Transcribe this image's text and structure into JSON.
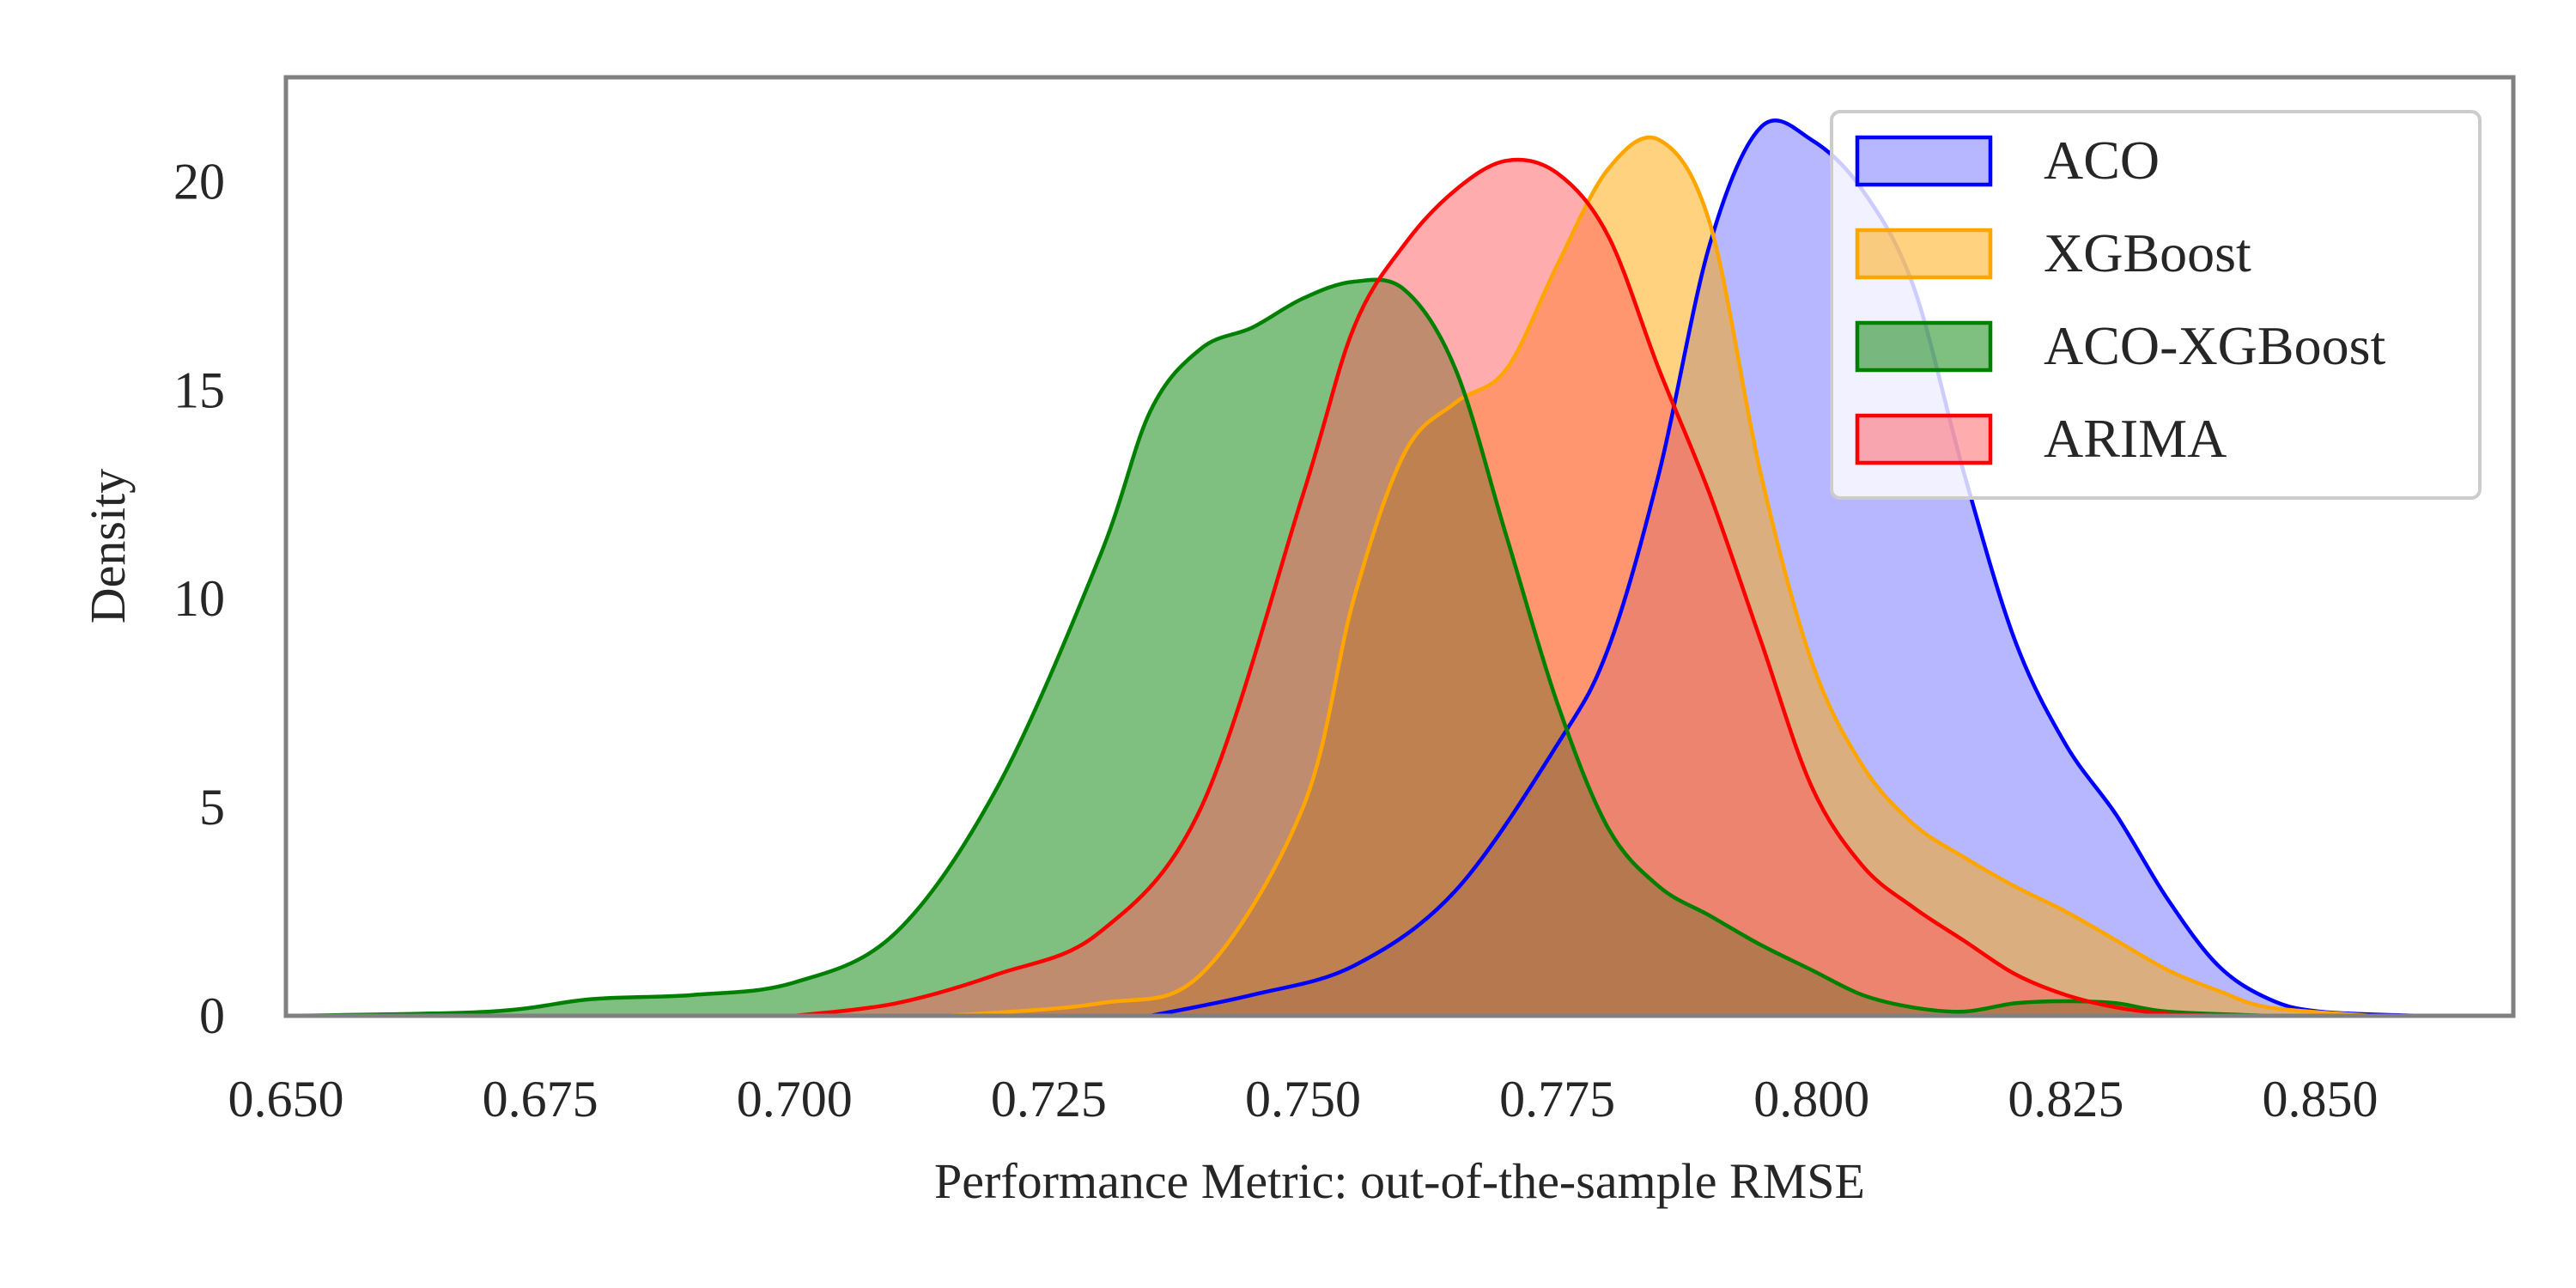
{
  "chart_data": {
    "type": "area",
    "xlabel": "Performance Metric: out-of-the-sample RMSE",
    "ylabel": "Density",
    "xlim": [
      0.65,
      0.869
    ],
    "ylim": [
      0,
      22.5
    ],
    "x_ticks": [
      "0.650",
      "0.675",
      "0.700",
      "0.725",
      "0.750",
      "0.775",
      "0.800",
      "0.825",
      "0.850"
    ],
    "y_ticks": [
      "0",
      "5",
      "10",
      "15",
      "20"
    ],
    "grid": false,
    "legend_position": "top-right",
    "series": [
      {
        "name": "ACO",
        "color": "#0000ff",
        "fill": "#6f6fff",
        "points": [
          [
            0.735,
            0
          ],
          [
            0.745,
            0.5
          ],
          [
            0.755,
            1.2
          ],
          [
            0.765,
            3.0
          ],
          [
            0.775,
            6.5
          ],
          [
            0.78,
            8.8
          ],
          [
            0.785,
            13.0
          ],
          [
            0.79,
            18.5
          ],
          [
            0.795,
            21.3
          ],
          [
            0.8,
            21.0
          ],
          [
            0.805,
            19.8
          ],
          [
            0.81,
            17.5
          ],
          [
            0.815,
            13.0
          ],
          [
            0.82,
            9.0
          ],
          [
            0.825,
            6.5
          ],
          [
            0.83,
            4.8
          ],
          [
            0.835,
            2.8
          ],
          [
            0.84,
            1.2
          ],
          [
            0.845,
            0.4
          ],
          [
            0.85,
            0.1
          ],
          [
            0.86,
            0
          ]
        ]
      },
      {
        "name": "XGBoost",
        "color": "#ffa500",
        "fill": "#ffa500",
        "points": [
          [
            0.715,
            0
          ],
          [
            0.73,
            0.3
          ],
          [
            0.74,
            1.0
          ],
          [
            0.75,
            5.0
          ],
          [
            0.755,
            10.0
          ],
          [
            0.76,
            13.5
          ],
          [
            0.765,
            14.7
          ],
          [
            0.77,
            15.5
          ],
          [
            0.775,
            18.0
          ],
          [
            0.78,
            20.3
          ],
          [
            0.785,
            21.0
          ],
          [
            0.79,
            19.0
          ],
          [
            0.795,
            13.0
          ],
          [
            0.8,
            8.5
          ],
          [
            0.805,
            6.0
          ],
          [
            0.81,
            4.6
          ],
          [
            0.815,
            3.8
          ],
          [
            0.82,
            3.1
          ],
          [
            0.825,
            2.5
          ],
          [
            0.83,
            1.8
          ],
          [
            0.835,
            1.1
          ],
          [
            0.84,
            0.6
          ],
          [
            0.845,
            0.2
          ],
          [
            0.855,
            0
          ]
        ]
      },
      {
        "name": "ACO-XGBoost",
        "color": "#008000",
        "fill": "#008000",
        "points": [
          [
            0.65,
            0
          ],
          [
            0.67,
            0.1
          ],
          [
            0.68,
            0.4
          ],
          [
            0.69,
            0.5
          ],
          [
            0.7,
            0.8
          ],
          [
            0.71,
            2.0
          ],
          [
            0.72,
            5.5
          ],
          [
            0.73,
            11.0
          ],
          [
            0.735,
            14.5
          ],
          [
            0.74,
            16.0
          ],
          [
            0.745,
            16.5
          ],
          [
            0.75,
            17.2
          ],
          [
            0.755,
            17.6
          ],
          [
            0.76,
            17.4
          ],
          [
            0.765,
            15.5
          ],
          [
            0.77,
            11.5
          ],
          [
            0.775,
            7.5
          ],
          [
            0.78,
            4.5
          ],
          [
            0.785,
            3.1
          ],
          [
            0.79,
            2.4
          ],
          [
            0.795,
            1.7
          ],
          [
            0.8,
            1.1
          ],
          [
            0.805,
            0.5
          ],
          [
            0.81,
            0.2
          ],
          [
            0.815,
            0.1
          ],
          [
            0.82,
            0.3
          ],
          [
            0.825,
            0.35
          ],
          [
            0.83,
            0.3
          ],
          [
            0.835,
            0.1
          ],
          [
            0.845,
            0
          ]
        ]
      },
      {
        "name": "ARIMA",
        "color": "#ff0000",
        "fill": "#ff5a60",
        "points": [
          [
            0.7,
            0
          ],
          [
            0.71,
            0.3
          ],
          [
            0.72,
            1.0
          ],
          [
            0.73,
            2.0
          ],
          [
            0.74,
            5.0
          ],
          [
            0.75,
            12.5
          ],
          [
            0.755,
            16.5
          ],
          [
            0.76,
            18.5
          ],
          [
            0.765,
            19.8
          ],
          [
            0.77,
            20.5
          ],
          [
            0.775,
            20.2
          ],
          [
            0.78,
            18.7
          ],
          [
            0.785,
            15.5
          ],
          [
            0.79,
            12.5
          ],
          [
            0.795,
            9.0
          ],
          [
            0.8,
            5.5
          ],
          [
            0.805,
            3.6
          ],
          [
            0.81,
            2.6
          ],
          [
            0.815,
            1.8
          ],
          [
            0.82,
            1.0
          ],
          [
            0.825,
            0.5
          ],
          [
            0.83,
            0.2
          ],
          [
            0.835,
            0.05
          ],
          [
            0.84,
            0
          ]
        ]
      }
    ]
  }
}
